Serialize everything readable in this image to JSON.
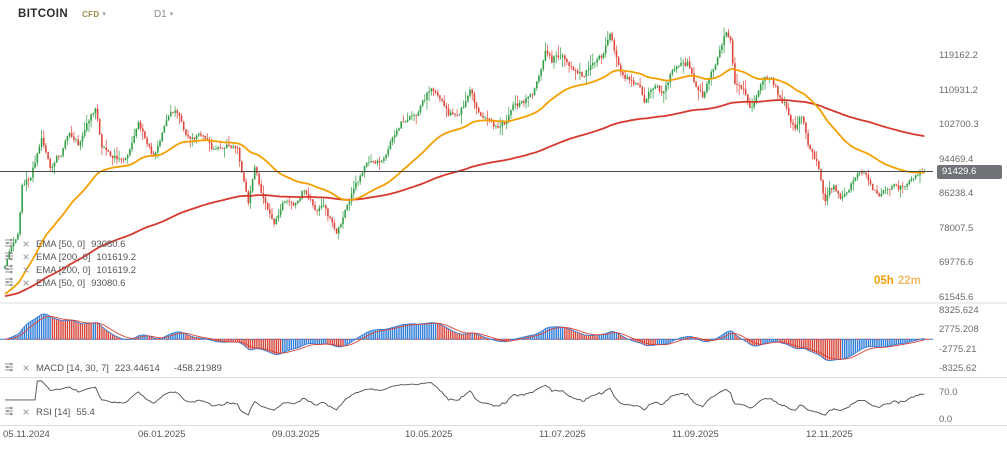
{
  "header": {
    "symbol": "BITCOIN",
    "market": "CFD",
    "timeframe": "D1"
  },
  "price_axis": {
    "labels": [
      "119162.2",
      "110931.2",
      "102700.3",
      "94469.4",
      "86238.4",
      "78007.5",
      "69776.6",
      "61545.6"
    ],
    "current": "91429.6"
  },
  "countdown": {
    "hours": "05h",
    "minutes": "22m"
  },
  "legend": {
    "emas": [
      {
        "label": "EMA [50, 0]",
        "value": "93080.6"
      },
      {
        "label": "EMA [200, 0]",
        "value": "101619.2"
      },
      {
        "label": "EMA [200, 0]",
        "value": "101619.2"
      },
      {
        "label": "EMA [50, 0]",
        "value": "93080.6"
      }
    ],
    "macd": {
      "label": "MACD [14, 30, 7]",
      "value_macd": "223.44614",
      "value_signal": "-458.21989"
    },
    "rsi": {
      "label": "RSI [14]",
      "value": "55.4"
    }
  },
  "macd_axis": {
    "labels": [
      "8325.624",
      "2775.208",
      "-2775.21",
      "-8325.62"
    ]
  },
  "rsi_axis": {
    "labels": [
      "70.0",
      "0.0"
    ]
  },
  "time_axis": {
    "ticks": [
      {
        "label": "05.11.2024",
        "day": 0
      },
      {
        "label": "06.01.2025",
        "day": 62
      },
      {
        "label": "09.03.2025",
        "day": 124
      },
      {
        "label": "10.05.2025",
        "day": 186
      },
      {
        "label": "11.07.2025",
        "day": 248
      },
      {
        "label": "11.09.2025",
        "day": 310
      },
      {
        "label": "12.11.2025",
        "day": 372
      }
    ]
  },
  "chart_data": {
    "type": "candlestick",
    "title": "BITCOIN CFD D1 — daily candles with EMA(50) and EMA(200) overlays, MACD(14,30,7) and RSI(14) lower panes",
    "x_unit": "days since first visible bar (05.11.2024)",
    "x_range_days": 427,
    "y_axis": {
      "min": 61545.6,
      "max": 127000,
      "tick_step": 8230.9
    },
    "current_close": 91429.6,
    "price_anchors": [
      [
        0,
        68800
      ],
      [
        2,
        72800
      ],
      [
        6,
        76500
      ],
      [
        8,
        88000
      ],
      [
        12,
        90500
      ],
      [
        17,
        98900
      ],
      [
        21,
        92800
      ],
      [
        26,
        95900
      ],
      [
        30,
        101100
      ],
      [
        34,
        97900
      ],
      [
        42,
        106300
      ],
      [
        45,
        97500
      ],
      [
        50,
        95300
      ],
      [
        55,
        93600
      ],
      [
        62,
        102100
      ],
      [
        69,
        94400
      ],
      [
        77,
        106100
      ],
      [
        81,
        104700
      ],
      [
        83,
        100500
      ],
      [
        90,
        99600
      ],
      [
        97,
        96500
      ],
      [
        104,
        97600
      ],
      [
        108,
        96100
      ],
      [
        113,
        84300
      ],
      [
        116,
        92000
      ],
      [
        119,
        86300
      ],
      [
        125,
        78600
      ],
      [
        129,
        83900
      ],
      [
        134,
        83600
      ],
      [
        139,
        87500
      ],
      [
        144,
        82600
      ],
      [
        148,
        83200
      ],
      [
        154,
        76900
      ],
      [
        160,
        84600
      ],
      [
        168,
        93400
      ],
      [
        176,
        94300
      ],
      [
        184,
        103100
      ],
      [
        188,
        104100
      ],
      [
        193,
        106600
      ],
      [
        198,
        111300
      ],
      [
        202,
        108900
      ],
      [
        206,
        104600
      ],
      [
        211,
        105700
      ],
      [
        216,
        110200
      ],
      [
        220,
        105200
      ],
      [
        224,
        103900
      ],
      [
        229,
        100900
      ],
      [
        233,
        103300
      ],
      [
        237,
        107200
      ],
      [
        245,
        108900
      ],
      [
        251,
        119900
      ],
      [
        254,
        117400
      ],
      [
        257,
        119300
      ],
      [
        260,
        118700
      ],
      [
        264,
        115800
      ],
      [
        269,
        114200
      ],
      [
        273,
        116700
      ],
      [
        277,
        118900
      ],
      [
        281,
        123300
      ],
      [
        284,
        117400
      ],
      [
        287,
        113400
      ],
      [
        291,
        112900
      ],
      [
        295,
        111000
      ],
      [
        297,
        108400
      ],
      [
        301,
        111200
      ],
      [
        305,
        110600
      ],
      [
        309,
        114300
      ],
      [
        313,
        115400
      ],
      [
        317,
        117300
      ],
      [
        320,
        112800
      ],
      [
        324,
        109200
      ],
      [
        328,
        114100
      ],
      [
        331,
        118600
      ],
      [
        334,
        123900
      ],
      [
        335,
        124300
      ],
      [
        337,
        121500
      ],
      [
        339,
        112300
      ],
      [
        343,
        110900
      ],
      [
        346,
        106200
      ],
      [
        350,
        110100
      ],
      [
        353,
        113500
      ],
      [
        356,
        114700
      ],
      [
        359,
        110300
      ],
      [
        363,
        106800
      ],
      [
        367,
        101300
      ],
      [
        370,
        104900
      ],
      [
        373,
        97900
      ],
      [
        377,
        94300
      ],
      [
        381,
        83900
      ],
      [
        383,
        86600
      ],
      [
        385,
        87800
      ],
      [
        388,
        84900
      ],
      [
        391,
        86400
      ],
      [
        394,
        89600
      ],
      [
        397,
        91200
      ],
      [
        400,
        89900
      ],
      [
        403,
        87300
      ],
      [
        406,
        85800
      ],
      [
        409,
        86900
      ],
      [
        412,
        88400
      ],
      [
        415,
        87100
      ],
      [
        418,
        88000
      ],
      [
        421,
        89700
      ],
      [
        424,
        90300
      ],
      [
        427,
        91429.6
      ]
    ],
    "overlays": [
      {
        "name": "EMA 50",
        "current": 93080.6
      },
      {
        "name": "EMA 200",
        "current": 101619.2
      }
    ],
    "lower_panes": [
      {
        "name": "MACD",
        "params": [
          14,
          30,
          7
        ],
        "current": [
          223.44614,
          -458.21989
        ],
        "axis_range": [
          -8325.62,
          8325.624
        ]
      },
      {
        "name": "RSI",
        "params": [
          14
        ],
        "current": 55.4,
        "axis_range": [
          0,
          100
        ],
        "shown_ticks": [
          70.0,
          0.0
        ]
      }
    ],
    "colors": {
      "up": "#2f9e44",
      "down": "#e0443a",
      "ema50": "#f59f00",
      "ema200": "#d63a2f",
      "macd_line": "#3b7dd8",
      "macd_signal": "#d6453a",
      "hist_up": "#2f7ed8",
      "hist_down": "#d6453a",
      "rsi": "#4d4d4d",
      "price_line": "#4a4a4a",
      "badge_bg": "#6f7378"
    }
  }
}
